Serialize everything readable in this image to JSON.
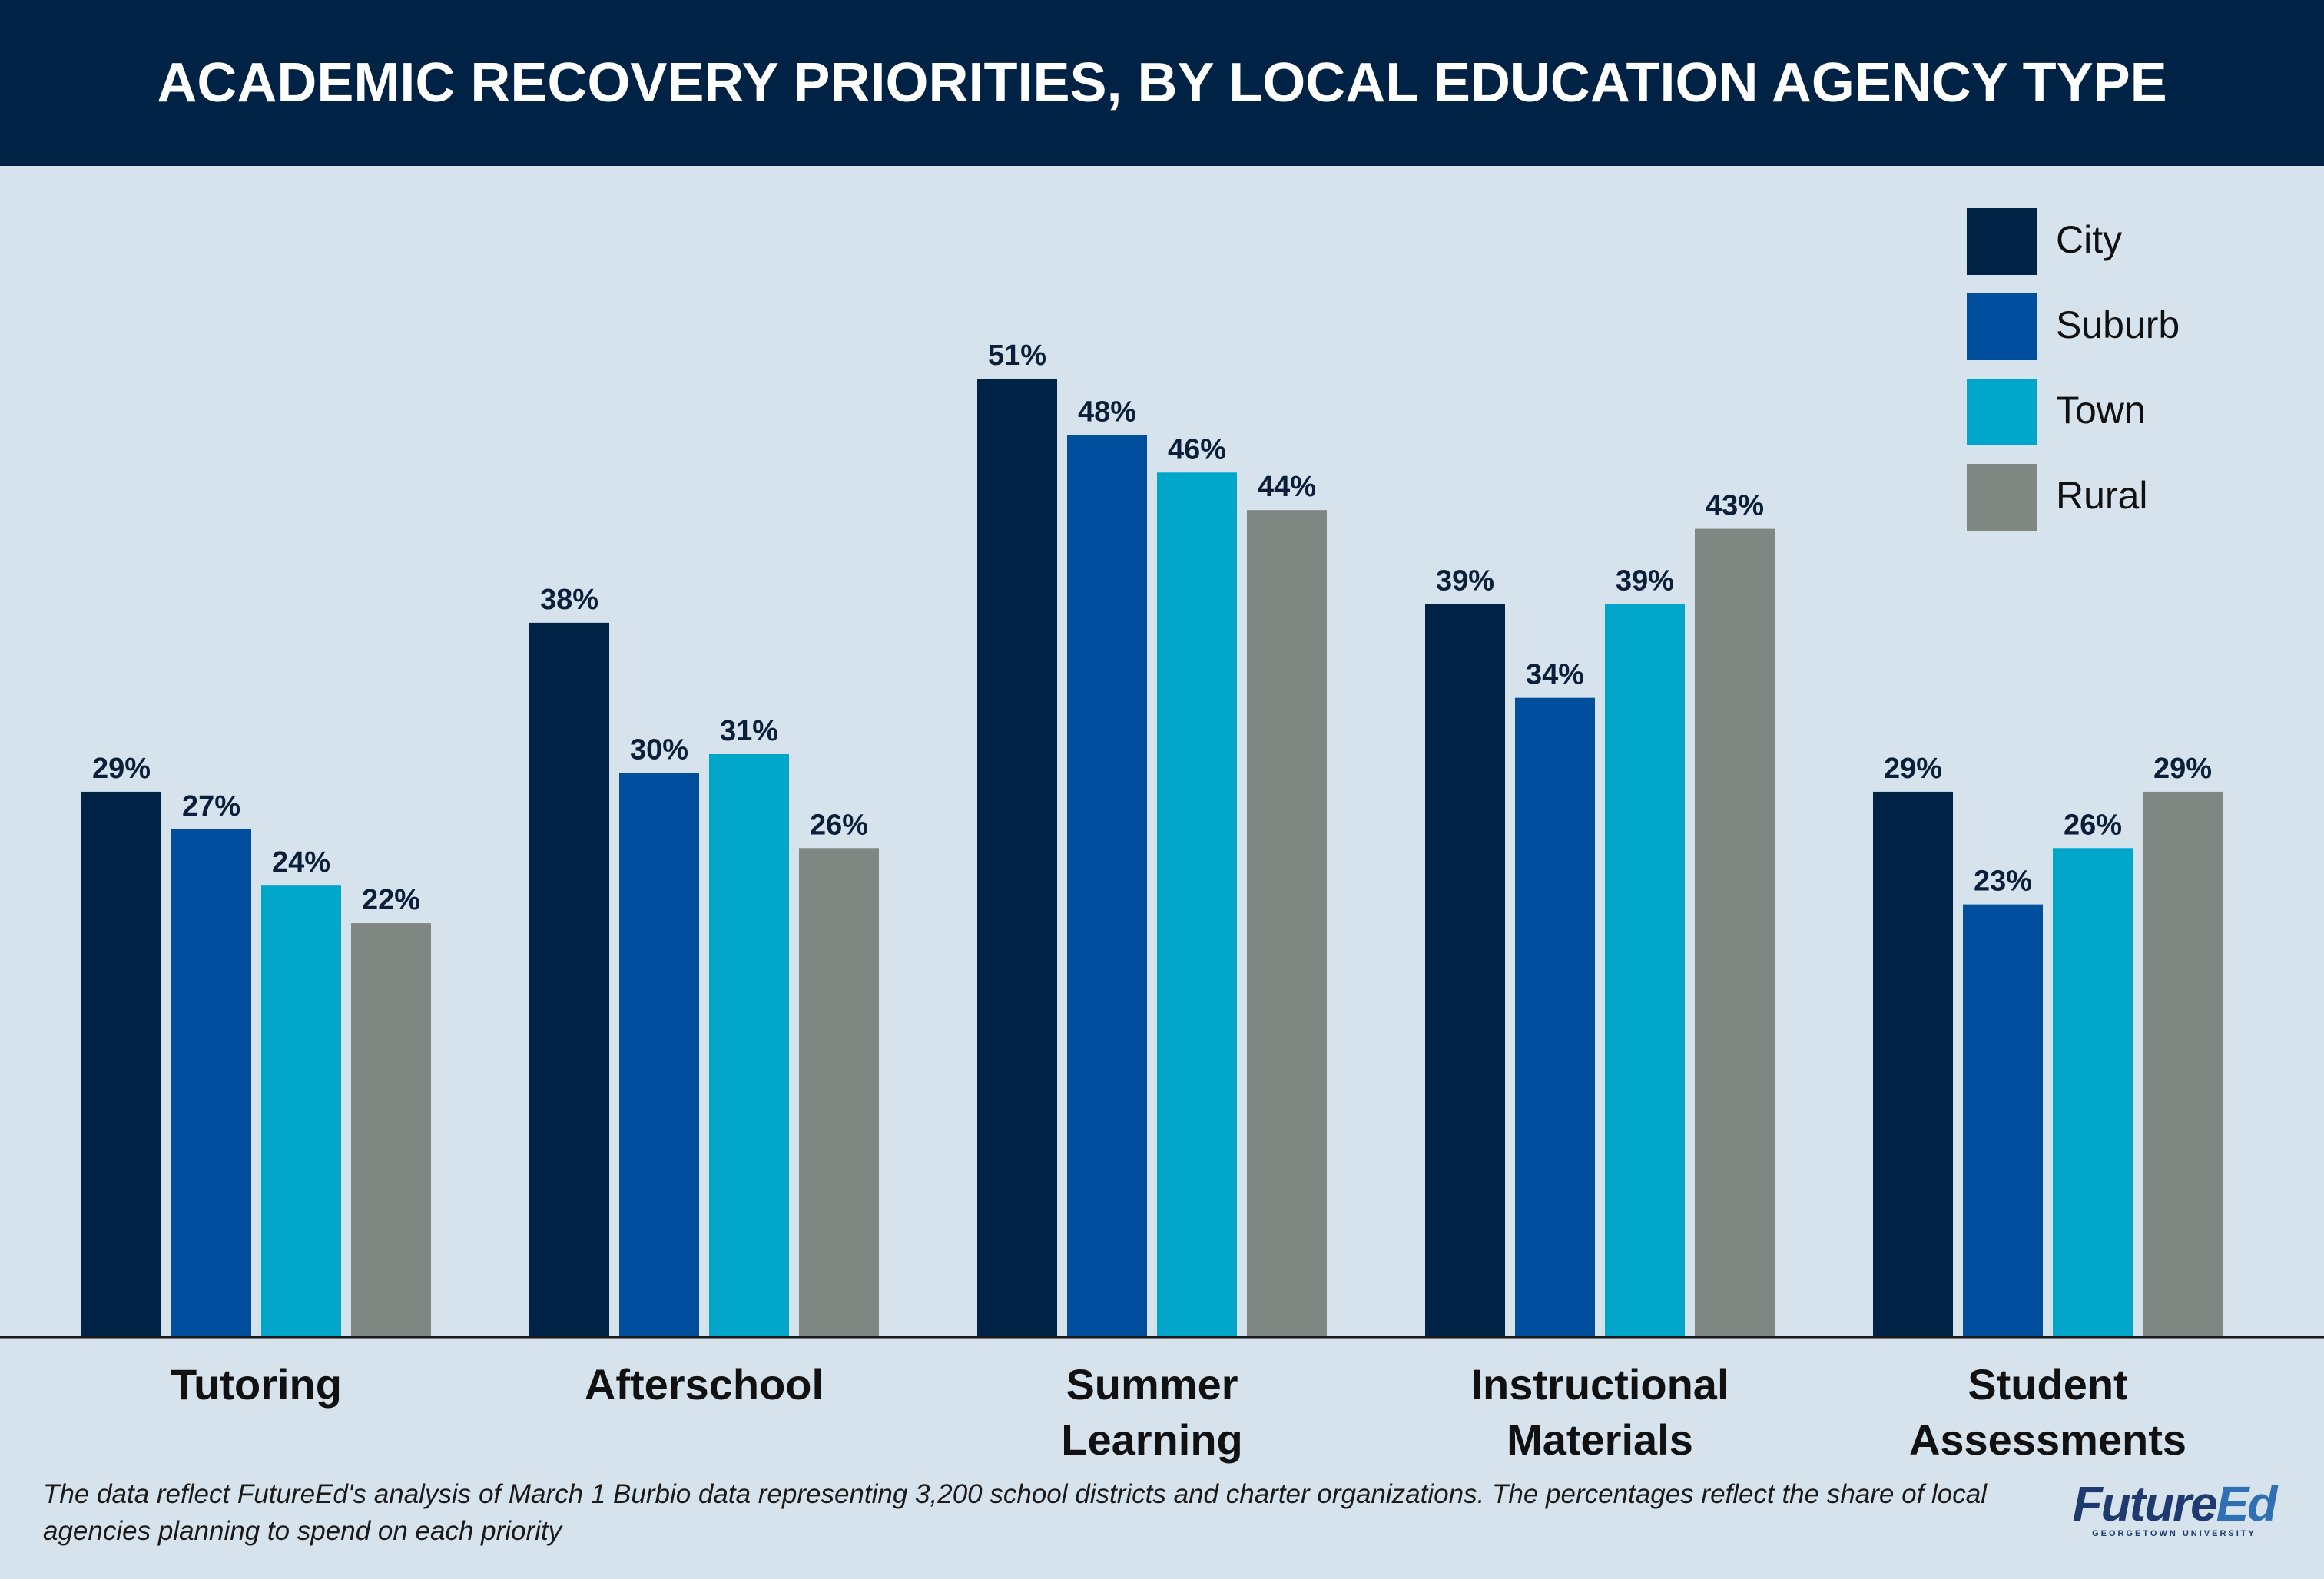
{
  "header": {
    "title": "ACADEMIC RECOVERY PRIORITIES, BY LOCAL EDUCATION AGENCY TYPE"
  },
  "footnote": "The data reflect FutureEd's analysis of March 1 Burbio data representing 3,200 school districts and charter organizations. The percentages reflect the share of local agencies planning to spend on each priority",
  "logo": {
    "part1": "Future",
    "part2": "Ed",
    "subtitle": "GEORGETOWN UNIVERSITY"
  },
  "chart_data": {
    "type": "bar",
    "title": "ACADEMIC RECOVERY PRIORITIES, BY LOCAL EDUCATION AGENCY TYPE",
    "categories": [
      [
        "Tutoring"
      ],
      [
        "Afterschool"
      ],
      [
        "Summer",
        "Learning"
      ],
      [
        "Instructional",
        "Materials"
      ],
      [
        "Student",
        "Assessments"
      ]
    ],
    "series": [
      {
        "name": "City",
        "color": "#002244",
        "values": [
          29,
          38,
          51,
          39,
          29
        ],
        "labels": [
          "29%",
          "38%",
          "51%",
          "39%",
          "29%"
        ]
      },
      {
        "name": "Suburb",
        "color": "#004e9e",
        "values": [
          27,
          30,
          48,
          34,
          23
        ],
        "labels": [
          "27%",
          "30%",
          "48%",
          "34%",
          "23%"
        ]
      },
      {
        "name": "Town",
        "color": "#00a6c9",
        "values": [
          24,
          31,
          46,
          39,
          26
        ],
        "labels": [
          "24%",
          "31%",
          "46%",
          "39%",
          "26%"
        ]
      },
      {
        "name": "Rural",
        "color": "#7f8783",
        "values": [
          22,
          26,
          44,
          43,
          29
        ],
        "labels": [
          "22%",
          "26%",
          "44%",
          "43%",
          "29%"
        ]
      }
    ],
    "ylim": [
      0,
      51
    ],
    "grid": false,
    "legend": "top-right",
    "xlabel": "",
    "ylabel": ""
  }
}
